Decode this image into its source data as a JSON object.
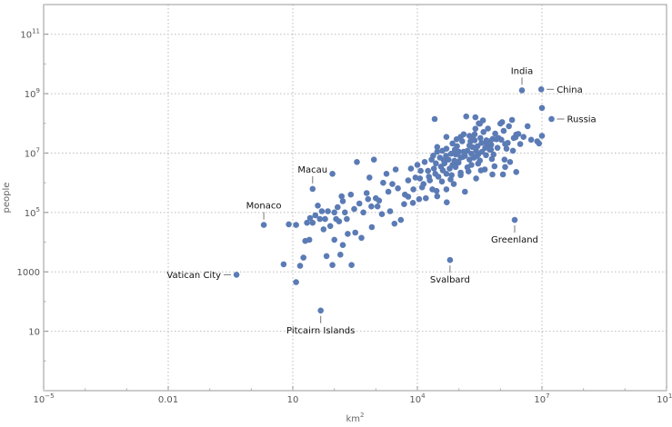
{
  "chart_data": {
    "type": "scatter",
    "title": "",
    "xlabel": "km",
    "xlabel_sup": "2",
    "ylabel": "people",
    "x_scale": "log",
    "y_scale": "log",
    "xlim": [
      1e-05,
      10000000000.0
    ],
    "ylim": [
      0.1,
      1000000000000.0
    ],
    "grid": true,
    "marker_color": "#5b7bb5",
    "grid_color": "#bbbbbb",
    "frame_color": "#999999",
    "x_ticks": [
      {
        "value": 1e-05,
        "base": "10",
        "exp": "−5"
      },
      {
        "value": 0.01,
        "text": "0.01"
      },
      {
        "value": 10,
        "text": "10"
      },
      {
        "value": 10000.0,
        "base": "10",
        "exp": "4"
      },
      {
        "value": 10000000.0,
        "base": "10",
        "exp": "7"
      },
      {
        "value": 10000000000.0,
        "base": "10",
        "exp": "10"
      }
    ],
    "y_ticks": [
      {
        "value": 10,
        "text": "10"
      },
      {
        "value": 1000,
        "text": "1000"
      },
      {
        "value": 100000.0,
        "base": "10",
        "exp": "5"
      },
      {
        "value": 10000000.0,
        "base": "10",
        "exp": "7"
      },
      {
        "value": 1000000000.0,
        "base": "10",
        "exp": "9"
      },
      {
        "value": 100000000000.0,
        "base": "10",
        "exp": "11"
      }
    ],
    "annotations": [
      {
        "label": "China",
        "x": 9600000.0,
        "y": 1400000000.0,
        "side": "right"
      },
      {
        "label": "India",
        "x": 3300000.0,
        "y": 1300000000.0,
        "side": "above"
      },
      {
        "label": "Russia",
        "x": 17000000.0,
        "y": 140000000.0,
        "side": "right"
      },
      {
        "label": "Macau",
        "x": 30,
        "y": 620000.0,
        "side": "above"
      },
      {
        "label": "Monaco",
        "x": 2,
        "y": 38000.0,
        "side": "above"
      },
      {
        "label": "Greenland",
        "x": 2200000.0,
        "y": 56000.0,
        "side": "below"
      },
      {
        "label": "Vatican City",
        "x": 0.44,
        "y": 800,
        "side": "left"
      },
      {
        "label": "Svalbard",
        "x": 61000.0,
        "y": 2500,
        "side": "below"
      },
      {
        "label": "Pitcairn Islands",
        "x": 47,
        "y": 50,
        "side": "below"
      }
    ],
    "points": [
      [
        9600000.0,
        1400000000.0
      ],
      [
        3300000.0,
        1300000000.0
      ],
      [
        17000000.0,
        140000000.0
      ],
      [
        30,
        620000.0
      ],
      [
        2,
        38000.0
      ],
      [
        2200000.0,
        56000.0
      ],
      [
        0.44,
        800
      ],
      [
        61000.0,
        2500
      ],
      [
        47,
        50
      ],
      [
        26000.0,
        140000000.0
      ],
      [
        10000000.0,
        330000000.0
      ],
      [
        10000000.0,
        38000000.0
      ],
      [
        8500000.0,
        21000000.0
      ],
      [
        7700000.0,
        25000000.0
      ],
      [
        2700000.0,
        44000000.0
      ],
      [
        2400000.0,
        42000000.0
      ],
      [
        2300000.0,
        34000000.0
      ],
      [
        2100000.0,
        32000000.0
      ],
      [
        1900000.0,
        130000000.0
      ],
      [
        1600000.0,
        80000000.0
      ],
      [
        1500000.0,
        22000000.0
      ],
      [
        1300000.0,
        20000000.0
      ],
      [
        1200000.0,
        56000000.0
      ],
      [
        1100000.0,
        110000000.0
      ],
      [
        1000000.0,
        98000000.0
      ],
      [
        900000.0,
        32000000.0
      ],
      [
        800000.0,
        29000000.0
      ],
      [
        750000.0,
        45000000.0
      ],
      [
        650000.0,
        30000000.0
      ],
      [
        600000.0,
        19000000.0
      ],
      [
        560000.0,
        25000000.0
      ],
      [
        500000.0,
        67000000.0
      ],
      [
        490000.0,
        17000000.0
      ],
      [
        460000.0,
        27000000.0
      ],
      [
        430000.0,
        15000000.0
      ],
      [
        390000.0,
        51000000.0
      ],
      [
        380000.0,
        126000000.0
      ],
      [
        360000.0,
        11000000.0
      ],
      [
        330000.0,
        32000000.0
      ],
      [
        320000.0,
        97000000.0
      ],
      [
        300000.0,
        100000000.0
      ],
      [
        280000.0,
        17000000.0
      ],
      [
        270000.0,
        8000000.0
      ],
      [
        250000.0,
        66000000.0
      ],
      [
        240000.0,
        27000000.0
      ],
      [
        240000.0,
        43000000.0
      ],
      [
        230000.0,
        7000000.0
      ],
      [
        210000.0,
        16000000.0
      ],
      [
        200000.0,
        4000000.0
      ],
      [
        190000.0,
        25000000.0
      ],
      [
        180000.0,
        6000000.0
      ],
      [
        160000.0,
        12000000.0
      ],
      [
        150000.0,
        170000000.0
      ],
      [
        140000.0,
        8100000.0
      ],
      [
        130000.0,
        11000000.0
      ],
      [
        120000.0,
        25000000.0
      ],
      [
        110000.0,
        7000000.0
      ],
      [
        110000.0,
        35000000.0
      ],
      [
        100000.0,
        11000000.0
      ],
      [
        93000.0,
        10000000.0
      ],
      [
        90000.0,
        5000000.0
      ],
      [
        84000.0,
        9000000.0
      ],
      [
        80000.0,
        13000000.0
      ],
      [
        78000.0,
        5500000.0
      ],
      [
        70000.0,
        4000000.0
      ],
      [
        65000.0,
        9500000.0
      ],
      [
        60000.0,
        3000000.0
      ],
      [
        56000.0,
        6000000.0
      ],
      [
        50000.0,
        2000000.0
      ],
      [
        49000.0,
        8000000.0
      ],
      [
        45000.0,
        4500000.0
      ],
      [
        43000.0,
        5800000.0
      ],
      [
        40000.0,
        12000000.0
      ],
      [
        37000.0,
        3500000.0
      ],
      [
        35000.0,
        7000000.0
      ],
      [
        32000.0,
        1600000.0
      ],
      [
        30000.0,
        11000000.0
      ],
      [
        28000.0,
        4500000.0
      ],
      [
        27000.0,
        2000000.0
      ],
      [
        25000.0,
        3000000.0
      ],
      [
        22000.0,
        6000000.0
      ],
      [
        20000.0,
        1200000.0
      ],
      [
        18000.0,
        2500000.0
      ],
      [
        15000.0,
        5000000.0
      ],
      [
        13000.0,
        700000.0
      ],
      [
        12000.0,
        2500000.0
      ],
      [
        10000.0,
        4000000.0
      ],
      [
        9000.0,
        1500000.0
      ],
      [
        8000.0,
        600000.0
      ],
      [
        7000.0,
        3000000.0
      ],
      [
        6000.0,
        1200000.0
      ],
      [
        5000.0,
        400000.0
      ],
      [
        3000.0,
        2800000.0
      ],
      [
        2500.0,
        900000.0
      ],
      [
        2000.0,
        500000.0
      ],
      [
        1500.0,
        1000000.0
      ],
      [
        1200.0,
        250000.0
      ],
      [
        1000.0,
        300000.0
      ],
      [
        900,
        6000000.0
      ],
      [
        700,
        1500000.0
      ],
      [
        600,
        450000.0
      ],
      [
        500,
        100000.0
      ],
      [
        400,
        200000.0
      ],
      [
        350,
        5000000.0
      ],
      [
        300,
        130000.0
      ],
      [
        250,
        400000.0
      ],
      [
        200,
        60000.0
      ],
      [
        180,
        100000.0
      ],
      [
        160,
        240000.0
      ],
      [
        150,
        350000.0
      ],
      [
        130,
        50000.0
      ],
      [
        120,
        150000.0
      ],
      [
        110,
        60000.0
      ],
      [
        100,
        100000.0
      ],
      [
        90,
        2000000.0
      ],
      [
        80,
        35000.0
      ],
      [
        70,
        110000.0
      ],
      [
        60,
        60000.0
      ],
      [
        55,
        27000.0
      ],
      [
        50,
        110000.0
      ],
      [
        45,
        60000.0
      ],
      [
        40,
        170000.0
      ],
      [
        35,
        80000.0
      ],
      [
        30,
        45000.0
      ],
      [
        25,
        12000.0
      ],
      [
        22,
        45000.0
      ],
      [
        20,
        11000.0
      ],
      [
        18,
        3000.0
      ],
      [
        15,
        1600.0
      ],
      [
        12,
        450
      ],
      [
        12,
        38000.0
      ],
      [
        8,
        40000.0
      ],
      [
        6,
        1800.0
      ],
      [
        30000.0,
        16000000.0
      ],
      [
        50000.0,
        35000000.0
      ],
      [
        70000.0,
        21000000.0
      ],
      [
        90000.0,
        17000000.0
      ],
      [
        130000.0,
        43000000.0
      ],
      [
        180000.0,
        38000000.0
      ],
      [
        220000.0,
        30000000.0
      ],
      [
        350000.0,
        22000000.0
      ],
      [
        450000.0,
        8500000.0
      ],
      [
        550000.0,
        13000000.0
      ],
      [
        680000.0,
        9000000.0
      ],
      [
        850000.0,
        15000000.0
      ],
      [
        1050000.0,
        28000000.0
      ],
      [
        1250000.0,
        6000000.0
      ],
      [
        1400000.0,
        14000000.0
      ],
      [
        1700000.0,
        5000000.0
      ],
      [
        2000000.0,
        12000000.0
      ],
      [
        3000000.0,
        20000000.0
      ],
      [
        3600000.0,
        35000000.0
      ],
      [
        4500000.0,
        80000000.0
      ],
      [
        5500000.0,
        28000000.0
      ],
      [
        110000.0,
        2200000.0
      ],
      [
        160000.0,
        3300000.0
      ],
      [
        260000.0,
        1400000.0
      ],
      [
        290000.0,
        4400000.0
      ],
      [
        340000.0,
        2600000.0
      ],
      [
        420000.0,
        2800000.0
      ],
      [
        620000.0,
        6300000.0
      ],
      [
        720000.0,
        3600000.0
      ],
      [
        1150000.0,
        1900000.0
      ],
      [
        290000.0,
        8900000.0
      ],
      [
        180000.0,
        18000000.0
      ],
      [
        125000.0,
        7400000.0
      ],
      [
        88000.0,
        29000000.0
      ],
      [
        67000.0,
        1800000.0
      ],
      [
        24000.0,
        8200000.0
      ],
      [
        11500.0,
        1400000.0
      ],
      [
        3400.0,
        650000.0
      ],
      [
        1800.0,
        2000000.0
      ],
      [
        800.0,
        32000.0
      ],
      [
        50000.0,
        600000.0
      ],
      [
        16000.0,
        300000.0
      ],
      [
        30000.0,
        350000.0
      ],
      [
        23000.0,
        600000.0
      ],
      [
        11000.0,
        280000.0
      ],
      [
        6000.0,
        340000.0
      ],
      [
        4000.0,
        56000.0
      ],
      [
        2800.0,
        42000.0
      ],
      [
        1400.0,
        88000.0
      ],
      [
        780,
        160000.0
      ],
      [
        450,
        14000.0
      ],
      [
        320,
        21000.0
      ],
      [
        210,
        19000.0
      ],
      [
        160,
        8000.0
      ],
      [
        140,
        3800.0
      ],
      [
        100,
        12000.0
      ],
      [
        260,
        1700.0
      ],
      [
        90,
        1700.0
      ],
      [
        65,
        3400.0
      ],
      [
        26,
        65000.0
      ],
      [
        110000.0,
        1800000.0
      ],
      [
        140000.0,
        500000.0
      ],
      [
        75000.0,
        900000.0
      ],
      [
        51000.0,
        220000.0
      ],
      [
        39000.0,
        1100000.0
      ],
      [
        1300000.0,
        3400000.0
      ],
      [
        640000.0,
        1900000.0
      ],
      [
        2400000.0,
        2300000.0
      ],
      [
        590000.0,
        13000000.0
      ],
      [
        470000.0,
        20000000.0
      ],
      [
        320000.0,
        5600000.0
      ],
      [
        260000.0,
        12000000.0
      ],
      [
        200000.0,
        9500000.0
      ],
      [
        170000.0,
        2400000.0
      ],
      [
        98000.0,
        4800000.0
      ],
      [
        83000.0,
        3400000.0
      ],
      [
        63000.0,
        1300000.0
      ],
      [
        41000.0,
        2600000.0
      ],
      [
        29000.0,
        530000.0
      ],
      [
        19000.0,
        1600000.0
      ],
      [
        14000.0,
        900000.0
      ],
      [
        7800.0,
        210000.0
      ],
      [
        4800.0,
        190000.0
      ],
      [
        2200.0,
        110000.0
      ],
      [
        1100.0,
        160000.0
      ],
      [
        650,
        280000.0
      ],
      [
        50000.0,
        14000000.0
      ],
      [
        250000.0,
        160000000.0
      ]
    ]
  }
}
